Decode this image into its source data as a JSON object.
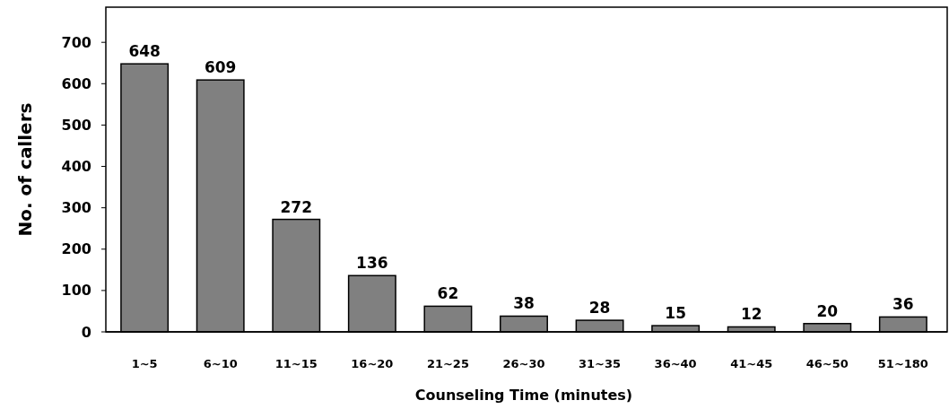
{
  "chart_data": {
    "type": "bar",
    "xlabel": "Counseling Time (minutes)",
    "ylabel": "No. of callers",
    "categories": [
      "1~5",
      "6~10",
      "11~15",
      "16~20",
      "21~25",
      "26~30",
      "31~35",
      "36~40",
      "41~45",
      "46~50",
      "51~180"
    ],
    "values": [
      648,
      609,
      272,
      136,
      62,
      38,
      28,
      15,
      12,
      20,
      36
    ],
    "color": "#808080",
    "ylim": [
      0,
      785
    ],
    "yticks": [
      0,
      100,
      200,
      300,
      400,
      500,
      600,
      700
    ],
    "data_labels": true,
    "grid": false
  }
}
